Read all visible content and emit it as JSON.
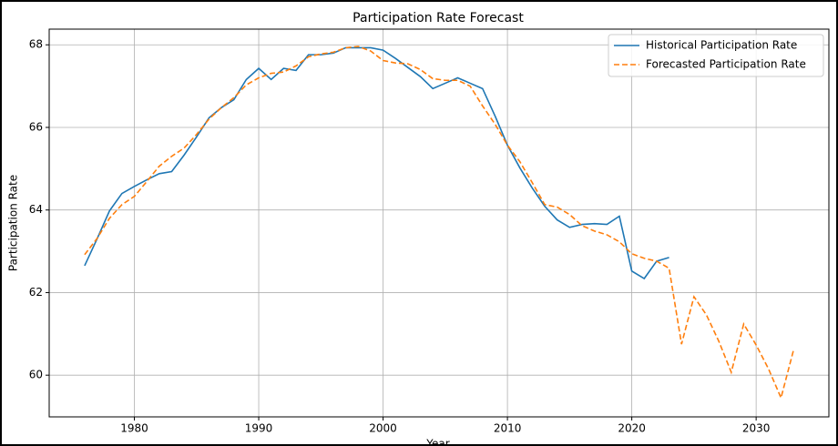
{
  "chart_data": {
    "type": "line",
    "title": "Participation Rate Forecast",
    "x_label": "Year",
    "y_label": "Participation Rate",
    "x": [
      1976,
      1977,
      1978,
      1979,
      1980,
      1981,
      1982,
      1983,
      1984,
      1985,
      1986,
      1987,
      1988,
      1989,
      1990,
      1991,
      1992,
      1993,
      1994,
      1995,
      1996,
      1997,
      1998,
      1999,
      2000,
      2001,
      2002,
      2003,
      2004,
      2005,
      2006,
      2007,
      2008,
      2009,
      2010,
      2011,
      2012,
      2013,
      2014,
      2015,
      2016,
      2017,
      2018,
      2019,
      2020,
      2021,
      2022,
      2023,
      2024,
      2025,
      2026,
      2027,
      2028,
      2029,
      2030,
      2031,
      2032,
      2033
    ],
    "series": [
      {
        "name": "Historical Participation Rate",
        "color": "#1f77b4",
        "dash": "solid",
        "values": [
          62.65,
          63.3,
          63.98,
          64.4,
          64.57,
          64.73,
          64.88,
          64.93,
          65.33,
          65.77,
          66.23,
          66.48,
          66.67,
          67.16,
          67.43,
          67.16,
          67.43,
          67.38,
          67.76,
          67.76,
          67.8,
          67.93,
          67.93,
          67.93,
          67.87,
          67.67,
          67.45,
          67.23,
          66.94,
          67.07,
          67.2,
          67.07,
          66.94,
          66.28,
          65.57,
          65.02,
          64.53,
          64.09,
          63.76,
          63.58,
          63.65,
          63.67,
          63.65,
          63.85,
          62.52,
          62.34,
          62.76,
          62.85,
          null,
          null,
          null,
          null,
          null,
          null,
          null,
          null,
          null,
          null
        ]
      },
      {
        "name": "Forecasted Participation Rate",
        "color": "#ff7f0e",
        "dash": "dashed",
        "values": [
          62.92,
          63.31,
          63.8,
          64.13,
          64.33,
          64.69,
          65.06,
          65.3,
          65.5,
          65.83,
          66.2,
          66.48,
          66.72,
          67.03,
          67.2,
          67.31,
          67.34,
          67.49,
          67.71,
          67.78,
          67.82,
          67.93,
          67.96,
          67.85,
          67.62,
          67.56,
          67.54,
          67.4,
          67.18,
          67.14,
          67.14,
          67.0,
          66.52,
          66.08,
          65.57,
          65.17,
          64.66,
          64.13,
          64.07,
          63.89,
          63.62,
          63.49,
          63.4,
          63.23,
          62.94,
          62.83,
          62.76,
          62.59,
          60.75,
          61.9,
          61.46,
          60.82,
          60.07,
          61.24,
          60.73,
          60.15,
          59.45,
          60.6
        ]
      }
    ],
    "xlim": [
      1973.15,
      2035.85
    ],
    "xticks": [
      1980,
      1990,
      2000,
      2010,
      2020,
      2030
    ],
    "ylim": [
      58.99,
      68.38
    ],
    "yticks": [
      60,
      62,
      64,
      66,
      68
    ],
    "grid": true,
    "legend": "upper right"
  }
}
